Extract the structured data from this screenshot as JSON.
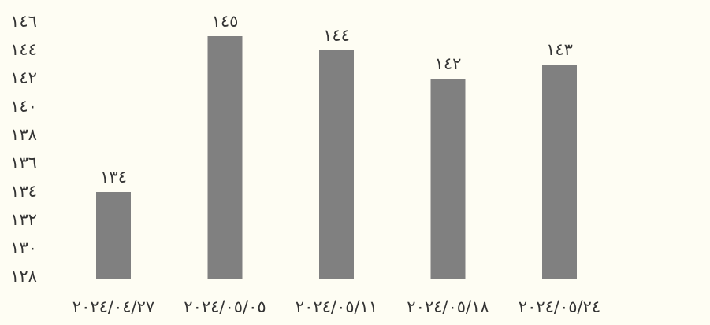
{
  "chart_data": {
    "type": "bar",
    "categories": [
      "٢٠٢٤/٠٤/٢٧",
      "٢٠٢٤/٠٥/٠٥",
      "٢٠٢٤/٠٥/١١",
      "٢٠٢٤/٠٥/١٨",
      "٢٠٢٤/٠٥/٢٤"
    ],
    "values": [
      134,
      145,
      144,
      142,
      143
    ],
    "data_labels": [
      "١٣٤",
      "١٤٥",
      "١٤٤",
      "١٤٢",
      "١٤٣"
    ],
    "y_ticks": [
      128,
      130,
      132,
      134,
      136,
      138,
      140,
      142,
      144,
      146
    ],
    "y_tick_labels": [
      "١٢٨",
      "١٣٠",
      "١٣٢",
      "١٣٤",
      "١٣٦",
      "١٣٨",
      "١٤٠",
      "١٤٢",
      "١٤٤",
      "١٤٦"
    ],
    "ylim": [
      128,
      146
    ],
    "grid": false,
    "legend": "none",
    "bar_color": "#808080",
    "background_color": "#fefdf3",
    "text_color": "#333333"
  }
}
